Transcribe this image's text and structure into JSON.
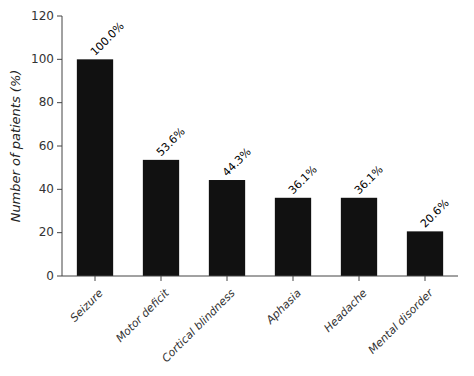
{
  "chart_data": {
    "type": "bar",
    "categories": [
      "Seizure",
      "Motor deficit",
      "Cortical blindness",
      "Aphasia",
      "Headache",
      "Mental disorder"
    ],
    "values": [
      100.0,
      53.6,
      44.3,
      36.1,
      36.1,
      20.6
    ],
    "value_labels": [
      "100.0%",
      "53.6%",
      "44.3%",
      "36.1%",
      "36.1%",
      "20.6%"
    ],
    "data_labels": true,
    "color": "#111111",
    "ylabel": "Number of patients (%)",
    "ylim": [
      0,
      120
    ],
    "yticks": [
      0,
      20,
      40,
      60,
      80,
      100,
      120
    ]
  }
}
